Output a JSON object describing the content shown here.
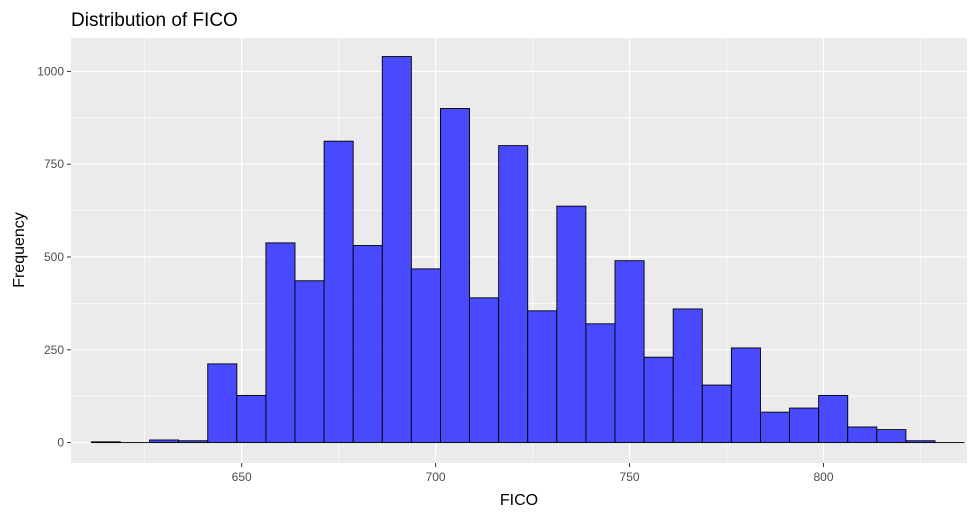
{
  "chart_data": {
    "type": "bar",
    "title": "Distribution of FICO",
    "xlabel": "FICO",
    "ylabel": "Frequency",
    "xlim": [
      606,
      837
    ],
    "ylim": [
      -55,
      1090
    ],
    "x_ticks": [
      650,
      700,
      750,
      800
    ],
    "y_ticks": [
      0,
      250,
      500,
      750,
      1000
    ],
    "x_tick_labels": [
      "650",
      "700",
      "750",
      "800"
    ],
    "y_tick_labels": [
      "0",
      "250",
      "500",
      "750",
      "1000"
    ],
    "bin_width": 7.5,
    "bin_start": 611.25,
    "values": [
      2,
      0,
      7,
      5,
      212,
      127,
      538,
      436,
      812,
      531,
      1040,
      468,
      900,
      390,
      800,
      355,
      637,
      320,
      490,
      230,
      360,
      155,
      255,
      82,
      93,
      127,
      42,
      35,
      5,
      0
    ],
    "bar_color": "#4040ff",
    "bar_border_color": "#000000",
    "panel_background": "#ebebeb",
    "grid_color": "#ffffff",
    "grid": true
  }
}
